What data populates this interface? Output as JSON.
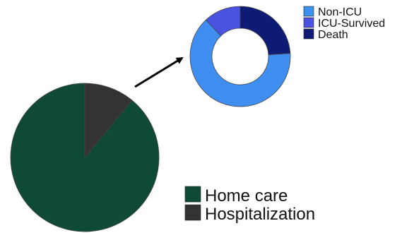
{
  "chart_data": [
    {
      "type": "pie",
      "categories": [
        "Home care",
        "Hospitalization"
      ],
      "values": [
        89,
        11
      ],
      "colors": [
        "#0f4a38",
        "#333333"
      ],
      "legend_position": "bottom-right",
      "title": ""
    },
    {
      "type": "pie",
      "style": "donut",
      "categories": [
        "Non-ICU",
        "ICU-Survived",
        "Death"
      ],
      "values": [
        64,
        12,
        24
      ],
      "colors": [
        "#3f8ef2",
        "#4a52e0",
        "#0e1b74"
      ],
      "legend_position": "top-right",
      "title": ""
    }
  ],
  "annotations": {
    "arrow": "pointer from the hospitalization slice to the breakdown donut"
  }
}
